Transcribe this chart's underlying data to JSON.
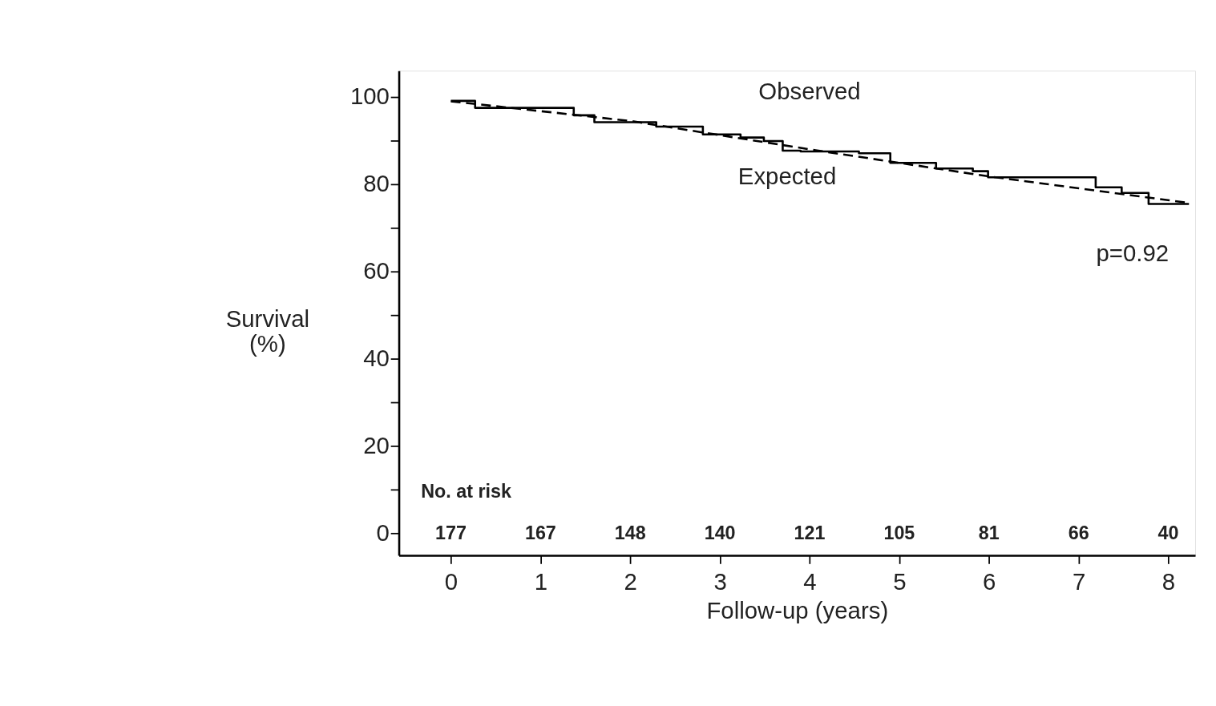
{
  "chart_data": {
    "type": "line",
    "xlabel": "Follow-up (years)",
    "ylabel": "Survival\n(%)",
    "xlim": [
      -0.58,
      8.3
    ],
    "xticks": [
      0,
      1,
      2,
      3,
      4,
      5,
      6,
      7,
      8
    ],
    "ylim": [
      -5,
      106
    ],
    "yticks": [
      0,
      {
        "value": 10,
        "label": null
      },
      20,
      {
        "value": 30,
        "label": null
      },
      40,
      {
        "value": 50,
        "label": null
      },
      60,
      {
        "value": 70,
        "label": null
      },
      80,
      {
        "value": 90,
        "label": null
      },
      100
    ],
    "grid": false,
    "series": [
      {
        "type": "step",
        "color": "#000000",
        "line_style": "solid",
        "x": [
          0,
          0.27,
          1.37,
          1.6,
          2.29,
          2.81,
          3.23,
          3.49,
          3.7,
          3.9,
          4.55,
          4.9,
          5.41,
          5.82,
          5.99,
          7.19,
          7.48,
          7.78,
          8.23
        ],
        "values": [
          99.1,
          97.5,
          95.8,
          94.2,
          93.2,
          91.4,
          90.7,
          89.9,
          87.7,
          87.5,
          87.1,
          84.9,
          83.6,
          83.0,
          81.6,
          79.3,
          78.0,
          75.5,
          75.5
        ]
      },
      {
        "type": "line",
        "color": "#000000",
        "line_style": "dashed",
        "x": [
          0,
          2,
          4,
          6,
          8.2
        ],
        "values": [
          99,
          94.5,
          88,
          81.8,
          75.8
        ]
      }
    ],
    "annotations": [
      "Observed",
      "Expected",
      "p=0.92",
      "No. at risk",
      "177",
      "167",
      "148",
      "140",
      "121",
      "105",
      "81",
      "66",
      "40"
    ]
  }
}
